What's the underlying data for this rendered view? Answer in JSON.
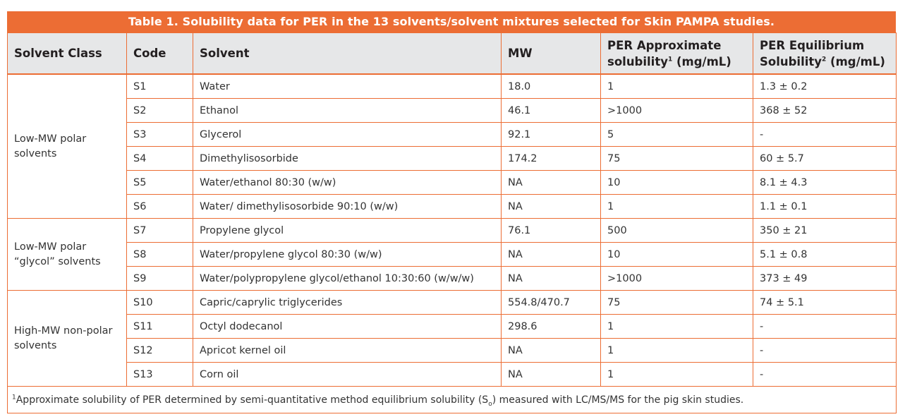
{
  "title": "Table 1. Solubility data for PER in the 13 solvents/solvent mixtures selected for Skin PAMPA studies.",
  "headers": {
    "solvent_class": "Solvent Class",
    "code": "Code",
    "solvent": "Solvent",
    "mw": "MW",
    "approx_l1": "PER Approximate",
    "approx_l2a": "solubility",
    "approx_sup": "1",
    "approx_l2b": " (mg/mL)",
    "eq_l1": "PER Equilibrium",
    "eq_l2a": "Solubility",
    "eq_sup": "2",
    "eq_l2b": " (mg/mL)"
  },
  "groups": [
    {
      "class_l1": "Low-MW polar",
      "class_l2": "solvents"
    },
    {
      "class_l1": "Low-MW polar",
      "class_l2": "“glycol” solvents"
    },
    {
      "class_l1": "High-MW non-polar",
      "class_l2": "solvents"
    }
  ],
  "rows": [
    {
      "code": "S1",
      "solvent": "Water",
      "mw": "18.0",
      "approx": "1",
      "eq": "1.3 ± 0.2"
    },
    {
      "code": "S2",
      "solvent": "Ethanol",
      "mw": "46.1",
      "approx": ">1000",
      "eq": "368 ± 52"
    },
    {
      "code": "S3",
      "solvent": "Glycerol",
      "mw": "92.1",
      "approx": "5",
      "eq": "-"
    },
    {
      "code": "S4",
      "solvent": "Dimethylisosorbide",
      "mw": "174.2",
      "approx": "75",
      "eq": "60 ± 5.7"
    },
    {
      "code": "S5",
      "solvent": "Water/ethanol 80:30 (w/w)",
      "mw": "NA",
      "approx": "10",
      "eq": "8.1 ± 4.3"
    },
    {
      "code": "S6",
      "solvent": "Water/ dimethylisosorbide 90:10 (w/w)",
      "mw": "NA",
      "approx": "1",
      "eq": "1.1 ± 0.1"
    },
    {
      "code": "S7",
      "solvent": "Propylene glycol",
      "mw": "76.1",
      "approx": "500",
      "eq": "350 ± 21"
    },
    {
      "code": "S8",
      "solvent": "Water/propylene glycol 80:30 (w/w)",
      "mw": "NA",
      "approx": "10",
      "eq": "5.1 ± 0.8"
    },
    {
      "code": "S9",
      "solvent": "Water/polypropylene glycol/ethanol 10:30:60 (w/w/w)",
      "mw": "NA",
      "approx": ">1000",
      "eq": "373 ± 49"
    },
    {
      "code": "S10",
      "solvent": "Capric/caprylic triglycerides",
      "mw": "554.8/470.7",
      "approx": "75",
      "eq": "74  ± 5.1"
    },
    {
      "code": "S11",
      "solvent": "Octyl dodecanol",
      "mw": "298.6",
      "approx": "1",
      "eq": "-"
    },
    {
      "code": "S12",
      "solvent": "Apricot kernel oil",
      "mw": "NA",
      "approx": "1",
      "eq": "-"
    },
    {
      "code": "S13",
      "solvent": "Corn oil",
      "mw": "NA",
      "approx": "1",
      "eq": "-"
    }
  ],
  "footnote": {
    "sup": "1",
    "text_a": "Approximate solubility of PER determined by semi-quantitative method equilibrium solubility (S",
    "sub": "o",
    "text_b": ") measured with LC/MS/MS for the pig skin studies."
  },
  "colors": {
    "accent": "#ec6d34",
    "header_bg": "#e6e7e8"
  }
}
